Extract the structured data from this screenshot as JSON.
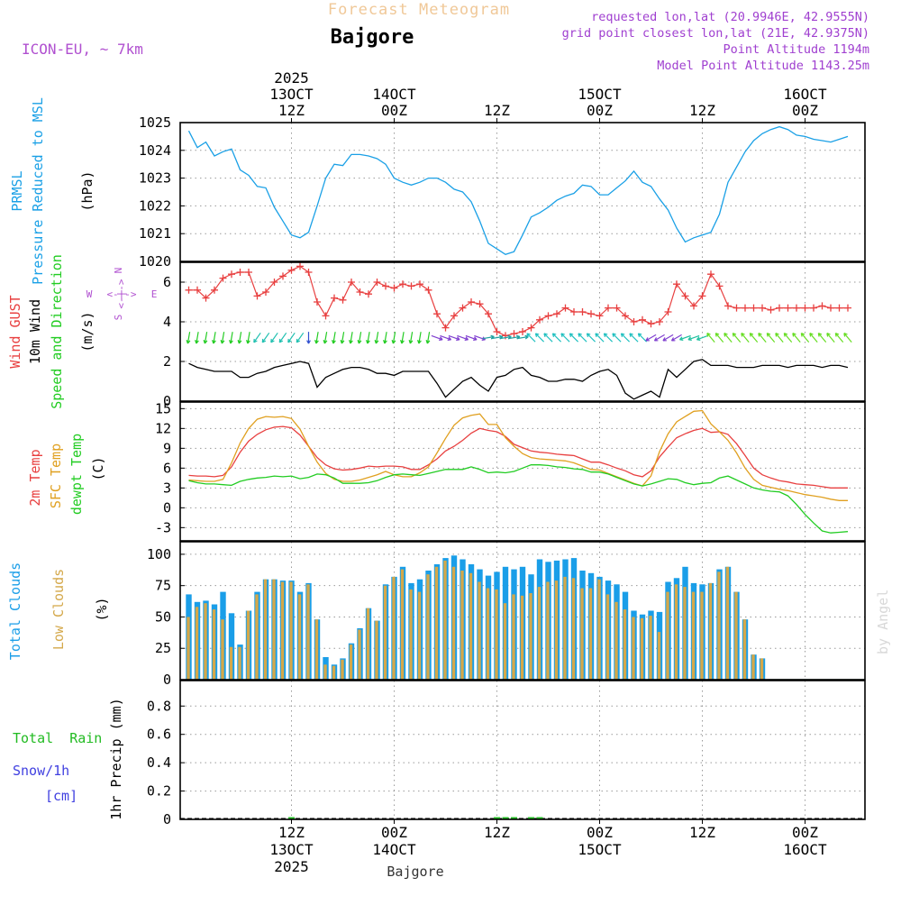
{
  "header": {
    "title_top": "Forecast Meteogram",
    "location": "Bajgore",
    "model": "ICON-EU, ~ 7km",
    "requested": "requested lon,lat (20.9946E, 42.9555N)",
    "grid_point": "grid point closest lon,lat (21E, 42.9375N)",
    "point_altitude": "Point Altitude 1194m",
    "model_altitude": "Model Point Altitude 1143.25m",
    "watermark": "by Angel",
    "footer_location": "Bajgore"
  },
  "colors": {
    "pressure": "#1aa0e6",
    "gust": "#e84040",
    "wind": "#000000",
    "wind_dir": "#22cc22",
    "temp": "#e84040",
    "sfc_temp": "#e0a020",
    "dewpt": "#22cc22",
    "total_clouds": "#1a9ee8",
    "low_clouds": "#d4a84a",
    "rain": "#22bb22",
    "snow": "#4040e0",
    "compass": "#b050d0",
    "meta_text": "#a040d0",
    "title_text": "#f0c898"
  },
  "time_axis": {
    "top_labels": [
      {
        "hour": 12,
        "line1": "2025",
        "line2": "13OCT",
        "line3": "12Z"
      },
      {
        "hour": 24,
        "line1": "",
        "line2": "14OCT",
        "line3": "00Z"
      },
      {
        "hour": 36,
        "line1": "",
        "line2": "",
        "line3": "12Z"
      },
      {
        "hour": 48,
        "line1": "",
        "line2": "15OCT",
        "line3": "00Z"
      },
      {
        "hour": 60,
        "line1": "",
        "line2": "",
        "line3": "12Z"
      },
      {
        "hour": 72,
        "line1": "",
        "line2": "16OCT",
        "line3": "00Z"
      }
    ],
    "bottom_labels": [
      {
        "hour": 12,
        "line1": "12Z",
        "line2": "13OCT",
        "line3": "2025"
      },
      {
        "hour": 24,
        "line1": "00Z",
        "line2": "14OCT",
        "line3": ""
      },
      {
        "hour": 36,
        "line1": "12Z",
        "line2": "",
        "line3": ""
      },
      {
        "hour": 48,
        "line1": "00Z",
        "line2": "15OCT",
        "line3": ""
      },
      {
        "hour": 60,
        "line1": "12Z",
        "line2": "",
        "line3": ""
      },
      {
        "hour": 72,
        "line1": "00Z",
        "line2": "16OCT",
        "line3": ""
      }
    ]
  },
  "chart_data": [
    {
      "type": "line",
      "panel": "pressure",
      "ylabel_lines": [
        "PRMSL",
        "Pressure Reduced to MSL"
      ],
      "unit": "(hPa)",
      "ylim": [
        1020,
        1025
      ],
      "yticks": [
        1020,
        1021,
        1022,
        1023,
        1024,
        1025
      ],
      "x_hours": [
        0,
        1,
        2,
        3,
        4,
        5,
        6,
        7,
        8,
        9,
        10,
        11,
        12,
        13,
        14,
        15,
        16,
        17,
        18,
        19,
        20,
        21,
        22,
        23,
        24,
        25,
        26,
        27,
        28,
        29,
        30,
        31,
        32,
        33,
        34,
        35,
        36,
        37,
        38,
        39,
        40,
        41,
        42,
        43,
        44,
        45,
        46,
        47,
        48,
        49,
        50,
        51,
        52,
        53,
        54,
        55,
        56,
        57,
        58,
        59,
        60,
        61,
        62,
        63,
        64,
        65,
        66,
        67,
        68,
        69,
        70,
        71,
        72,
        73,
        74,
        75,
        76,
        77
      ],
      "series": [
        {
          "name": "PRMSL",
          "values": [
            1024.7,
            1024.1,
            1024.3,
            1023.8,
            1023.95,
            1024.05,
            1023.3,
            1023.1,
            1022.7,
            1022.65,
            1021.95,
            1021.45,
            1020.95,
            1020.85,
            1021.05,
            1022.0,
            1023.0,
            1023.5,
            1023.45,
            1023.85,
            1023.85,
            1023.8,
            1023.7,
            1023.5,
            1023.0,
            1022.85,
            1022.75,
            1022.85,
            1023.0,
            1023.0,
            1022.85,
            1022.6,
            1022.5,
            1022.15,
            1021.45,
            1020.65,
            1020.45,
            1020.25,
            1020.35,
            1020.95,
            1021.6,
            1021.75,
            1021.95,
            1022.2,
            1022.35,
            1022.45,
            1022.75,
            1022.7,
            1022.4,
            1022.4,
            1022.65,
            1022.9,
            1023.25,
            1022.85,
            1022.7,
            1022.25,
            1021.85,
            1021.2,
            1020.7,
            1020.85,
            1020.95,
            1021.05,
            1021.7,
            1022.85,
            1023.4,
            1023.95,
            1024.35,
            1024.6,
            1024.75,
            1024.85,
            1024.75,
            1024.55,
            1024.5,
            1024.4,
            1024.35,
            1024.3,
            1024.4,
            1024.5
          ]
        }
      ]
    },
    {
      "type": "line",
      "panel": "wind",
      "ylabel_lines": [
        "Wind GUST",
        "10m Wind",
        "Speed and Direction"
      ],
      "unit": "(m/s)",
      "compass": {
        "n": "N",
        "s": "S",
        "e": "E",
        "w": "W"
      },
      "ylim": [
        0,
        7
      ],
      "yticks": [
        0,
        2,
        4,
        6
      ],
      "series": [
        {
          "name": "Wind GUST",
          "values": [
            5.6,
            5.6,
            5.2,
            5.6,
            6.2,
            6.4,
            6.5,
            6.5,
            5.3,
            5.5,
            6.0,
            6.3,
            6.6,
            6.8,
            6.5,
            5.0,
            4.3,
            5.2,
            5.1,
            6.0,
            5.5,
            5.4,
            6.0,
            5.8,
            5.7,
            5.9,
            5.8,
            5.9,
            5.6,
            4.4,
            3.7,
            4.3,
            4.7,
            5.0,
            4.9,
            4.4,
            3.5,
            3.3,
            3.4,
            3.5,
            3.7,
            4.1,
            4.3,
            4.4,
            4.7,
            4.5,
            4.5,
            4.4,
            4.3,
            4.7,
            4.7,
            4.3,
            4.0,
            4.1,
            3.9,
            4.0,
            4.5,
            5.9,
            5.3,
            4.8,
            5.3,
            6.4,
            5.8,
            4.8,
            4.7,
            4.7,
            4.7,
            4.7,
            4.6,
            4.7,
            4.7,
            4.7,
            4.7,
            4.7,
            4.8,
            4.7,
            4.7,
            4.7
          ]
        },
        {
          "name": "10m Wind",
          "values": [
            1.9,
            1.7,
            1.6,
            1.5,
            1.5,
            1.5,
            1.2,
            1.2,
            1.4,
            1.5,
            1.7,
            1.8,
            1.9,
            2.0,
            1.9,
            0.7,
            1.2,
            1.4,
            1.6,
            1.7,
            1.7,
            1.6,
            1.4,
            1.4,
            1.3,
            1.5,
            1.5,
            1.5,
            1.5,
            0.9,
            0.2,
            0.6,
            1.0,
            1.2,
            0.8,
            0.5,
            1.2,
            1.3,
            1.6,
            1.7,
            1.3,
            1.2,
            1.0,
            1.0,
            1.1,
            1.1,
            1.0,
            1.3,
            1.5,
            1.6,
            1.3,
            0.4,
            0.1,
            0.3,
            0.5,
            0.2,
            1.6,
            1.2,
            1.6,
            2.0,
            2.1,
            1.8,
            1.8,
            1.8,
            1.7,
            1.7,
            1.7,
            1.8,
            1.8,
            1.8,
            1.7,
            1.8,
            1.8,
            1.8,
            1.7,
            1.8,
            1.8,
            1.7
          ]
        }
      ]
    },
    {
      "type": "line",
      "panel": "temperature",
      "ylabel_lines": [
        "2m Temp",
        "SFC Temp",
        "dewpt Temp"
      ],
      "unit": "(C)",
      "ylim": [
        -5,
        16
      ],
      "yticks": [
        -3,
        0,
        3,
        6,
        9,
        12,
        15
      ],
      "series": [
        {
          "name": "2m Temp",
          "values": [
            4.9,
            4.8,
            4.8,
            4.7,
            4.9,
            6.2,
            8.4,
            10.1,
            11.1,
            11.8,
            12.2,
            12.3,
            12.1,
            11.0,
            9.3,
            7.6,
            6.5,
            5.9,
            5.7,
            5.8,
            6.0,
            6.3,
            6.2,
            6.3,
            6.3,
            6.2,
            5.8,
            5.8,
            6.5,
            7.4,
            8.6,
            9.3,
            10.2,
            11.3,
            12.0,
            11.7,
            11.5,
            10.8,
            9.6,
            9.1,
            8.6,
            8.4,
            8.3,
            8.1,
            8.0,
            7.9,
            7.4,
            6.9,
            6.9,
            6.5,
            6.0,
            5.6,
            5.0,
            4.7,
            5.6,
            7.7,
            9.2,
            10.6,
            11.2,
            11.7,
            12.0,
            11.4,
            11.5,
            11.1,
            9.7,
            7.9,
            6.0,
            5.0,
            4.5,
            4.1,
            3.9,
            3.6,
            3.5,
            3.4,
            3.2,
            3.0,
            3.0,
            3.0
          ]
        },
        {
          "name": "SFC Temp",
          "values": [
            4.2,
            4.1,
            4.0,
            4.0,
            4.3,
            6.8,
            9.8,
            12.0,
            13.4,
            13.8,
            13.7,
            13.8,
            13.5,
            11.9,
            9.3,
            6.9,
            5.2,
            4.3,
            4.0,
            4.0,
            4.2,
            4.6,
            5.0,
            5.5,
            5.0,
            4.7,
            4.7,
            5.3,
            6.2,
            8.3,
            10.5,
            12.5,
            13.6,
            14.0,
            14.2,
            12.6,
            12.6,
            10.6,
            9.3,
            8.2,
            7.6,
            7.4,
            7.3,
            7.2,
            7.1,
            6.8,
            6.3,
            5.8,
            5.7,
            5.2,
            4.7,
            4.2,
            3.7,
            3.3,
            4.8,
            8.5,
            11.2,
            13.0,
            13.8,
            14.6,
            14.7,
            12.7,
            11.5,
            10.2,
            8.3,
            6.0,
            4.3,
            3.4,
            3.1,
            2.8,
            2.6,
            2.3,
            2.0,
            1.8,
            1.6,
            1.3,
            1.1,
            1.1
          ]
        },
        {
          "name": "dewpt Temp",
          "values": [
            4.1,
            3.8,
            3.6,
            3.6,
            3.5,
            3.4,
            4.0,
            4.3,
            4.5,
            4.6,
            4.8,
            4.7,
            4.8,
            4.4,
            4.6,
            5.1,
            5.0,
            4.5,
            3.7,
            3.7,
            3.7,
            3.8,
            4.1,
            4.6,
            5.0,
            5.1,
            5.0,
            4.9,
            5.2,
            5.5,
            5.8,
            5.8,
            5.8,
            6.2,
            5.8,
            5.3,
            5.4,
            5.3,
            5.5,
            6.0,
            6.5,
            6.5,
            6.4,
            6.2,
            6.1,
            5.9,
            5.8,
            5.4,
            5.4,
            5.1,
            4.6,
            4.1,
            3.6,
            3.3,
            3.6,
            4.0,
            4.4,
            4.3,
            3.8,
            3.5,
            3.7,
            3.8,
            4.5,
            4.8,
            4.2,
            3.6,
            3.0,
            2.7,
            2.5,
            2.4,
            1.8,
            0.5,
            -1.0,
            -2.3,
            -3.5,
            -3.8,
            -3.7,
            -3.6
          ]
        }
      ]
    },
    {
      "type": "bar",
      "panel": "clouds",
      "ylabel_lines": [
        "Total Clouds",
        "Low Clouds"
      ],
      "unit": "(%)",
      "ylim": [
        0,
        110
      ],
      "yticks": [
        0,
        25,
        50,
        75,
        100
      ],
      "series": [
        {
          "name": "Total Clouds",
          "values": [
            68,
            62,
            63,
            60,
            70,
            53,
            28,
            55,
            70,
            80,
            80,
            79,
            79,
            70,
            77,
            48,
            18,
            12,
            17,
            29,
            41,
            57,
            47,
            76,
            82,
            90,
            77,
            80,
            87,
            92,
            97,
            99,
            96,
            92,
            88,
            83,
            86,
            90,
            88,
            90,
            84,
            96,
            94,
            95,
            96,
            97,
            87,
            85,
            82,
            79,
            76,
            70,
            55,
            52,
            55,
            54,
            78,
            81,
            90,
            77,
            76,
            77,
            88,
            90,
            70,
            48,
            20,
            17,
            0,
            0,
            0,
            0,
            0,
            0,
            0,
            0,
            0,
            0
          ]
        },
        {
          "name": "Low Clouds",
          "values": [
            50,
            58,
            61,
            56,
            48,
            26,
            26,
            55,
            68,
            80,
            80,
            78,
            78,
            68,
            76,
            48,
            12,
            11,
            16,
            28,
            40,
            57,
            47,
            75,
            82,
            88,
            72,
            70,
            84,
            90,
            95,
            90,
            87,
            85,
            78,
            73,
            72,
            61,
            68,
            67,
            69,
            74,
            78,
            79,
            82,
            81,
            73,
            73,
            80,
            68,
            62,
            56,
            50,
            49,
            51,
            38,
            70,
            76,
            74,
            70,
            70,
            77,
            86,
            90,
            70,
            48,
            20,
            17,
            0,
            0,
            0,
            0,
            0,
            0,
            0,
            0,
            0,
            0
          ]
        }
      ]
    },
    {
      "type": "bar",
      "panel": "precip",
      "ylabel_lines": [
        "Total  Rain",
        "Snow/1h",
        "[cm]"
      ],
      "ylabel_main": "1hr Precip (mm)",
      "ylim": [
        0,
        0.98
      ],
      "yticks": [
        0,
        0.2,
        0.4,
        0.6,
        0.8
      ],
      "ytick_labels": [
        "0",
        "0.2",
        "0.4",
        "0.6",
        "0.8"
      ],
      "series": [
        {
          "name": "Total Rain",
          "values": [
            0,
            0,
            0,
            0,
            0,
            0,
            0,
            0,
            0,
            0,
            0,
            0,
            0.004,
            0,
            0,
            0,
            0,
            0,
            0,
            0,
            0,
            0,
            0,
            0,
            0,
            0,
            0,
            0,
            0,
            0,
            0,
            0,
            0,
            0,
            0,
            0,
            0.01,
            0.012,
            0.006,
            0,
            0.008,
            0.005,
            0,
            0,
            0,
            0,
            0,
            0,
            0,
            0,
            0,
            0,
            0,
            0,
            0,
            0,
            0,
            0,
            0,
            0,
            0,
            0,
            0,
            0,
            0,
            0,
            0,
            0,
            0,
            0,
            0,
            0,
            0,
            0,
            0,
            0,
            0,
            0
          ]
        },
        {
          "name": "Snow/1h",
          "values": [
            0,
            0,
            0,
            0,
            0,
            0,
            0,
            0,
            0,
            0,
            0,
            0,
            0,
            0,
            0,
            0,
            0,
            0,
            0,
            0,
            0,
            0,
            0,
            0,
            0,
            0,
            0,
            0,
            0,
            0,
            0,
            0,
            0,
            0,
            0,
            0,
            0,
            0,
            0,
            0,
            0,
            0,
            0,
            0,
            0,
            0,
            0,
            0,
            0,
            0,
            0,
            0,
            0,
            0,
            0,
            0,
            0,
            0,
            0,
            0,
            0,
            0,
            0,
            0,
            0,
            0,
            0,
            0,
            0,
            0,
            0,
            0,
            0,
            0,
            0,
            0,
            0,
            0
          ]
        }
      ]
    }
  ]
}
